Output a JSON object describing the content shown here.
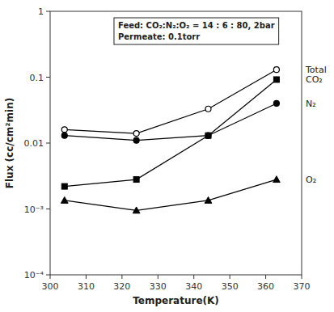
{
  "chart_data": {
    "type": "line",
    "xlabel": "Temperature(K)",
    "ylabel": "Flux (cc/cm²min)",
    "annotation": "Feed: CO₂:N₂:O₂ = 14 : 6 : 80, 2bar\nPermeate: 0.1torr",
    "x": [
      304,
      324,
      344,
      363
    ],
    "series": [
      {
        "name": "Total",
        "color": "black",
        "marker": "circle-open",
        "values": [
          0.016,
          0.014,
          0.033,
          0.13
        ]
      },
      {
        "name": "N₂",
        "color": "black",
        "marker": "circle",
        "values": [
          0.013,
          0.011,
          0.013,
          0.04
        ]
      },
      {
        "name": "CO₂",
        "color": "black",
        "marker": "square",
        "values": [
          0.0022,
          0.0028,
          0.013,
          0.092
        ]
      },
      {
        "name": "O₂",
        "color": "black",
        "marker": "triangle",
        "values": [
          0.00135,
          0.00095,
          0.00135,
          0.0028
        ]
      }
    ],
    "xlim": [
      300,
      370
    ],
    "xticks": [
      300,
      310,
      320,
      330,
      340,
      350,
      360,
      370
    ],
    "ylim": [
      0.0001,
      1
    ],
    "yticks": [
      {
        "value": 0.0001,
        "label": "10⁻⁴"
      },
      {
        "value": 0.001,
        "label": "10⁻³"
      },
      0.01,
      0.1,
      1
    ],
    "log": "y",
    "grid": false,
    "background_color": "#ffffff"
  }
}
